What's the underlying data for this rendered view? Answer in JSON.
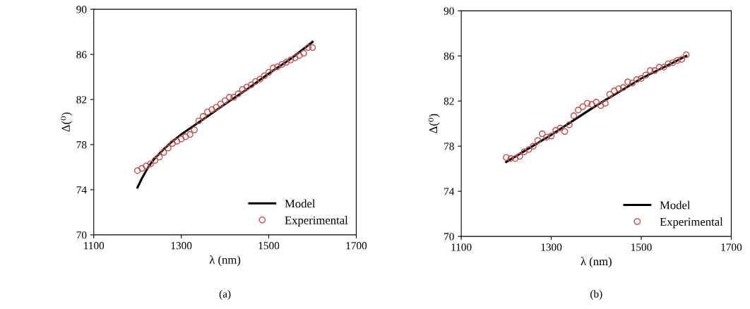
{
  "chart_data": [
    {
      "type": "line",
      "xlabel": "λ (nm)",
      "ylabel": "Δ(⁰)",
      "annotations": [
        "(a)"
      ],
      "xlim": [
        1100,
        1700
      ],
      "xticks": [
        1100,
        1300,
        1500,
        1700
      ],
      "ylim": [
        70,
        90
      ],
      "yticks": [
        70,
        74,
        78,
        82,
        86,
        90
      ],
      "grid": false,
      "legend": "bottom right",
      "series": [
        {
          "name": "Model",
          "color": "#000000",
          "marker": "none",
          "x": [
            1200,
            1210,
            1220,
            1230,
            1240,
            1250,
            1260,
            1280,
            1300,
            1330,
            1360,
            1400,
            1450,
            1500,
            1550,
            1600
          ],
          "values": [
            74.2,
            75.0,
            75.7,
            76.3,
            76.8,
            77.2,
            77.6,
            78.3,
            78.9,
            79.7,
            80.5,
            81.6,
            82.9,
            84.3,
            85.6,
            87.1
          ]
        },
        {
          "name": "Experimental",
          "type": "scatter",
          "color": "#c0504d",
          "marker": "circle",
          "x": [
            1200,
            1210,
            1220,
            1230,
            1240,
            1250,
            1260,
            1270,
            1280,
            1290,
            1300,
            1310,
            1320,
            1330,
            1340,
            1350,
            1360,
            1370,
            1380,
            1390,
            1400,
            1410,
            1420,
            1430,
            1440,
            1450,
            1460,
            1470,
            1480,
            1490,
            1500,
            1510,
            1520,
            1530,
            1540,
            1550,
            1560,
            1570,
            1580,
            1590,
            1600
          ],
          "values": [
            75.7,
            75.9,
            76.1,
            76.3,
            76.6,
            76.9,
            77.3,
            77.7,
            78.1,
            78.3,
            78.5,
            78.7,
            78.9,
            79.3,
            80.1,
            80.5,
            80.9,
            81.1,
            81.3,
            81.6,
            81.9,
            82.2,
            82.2,
            82.5,
            82.9,
            83.1,
            83.3,
            83.6,
            83.8,
            84.1,
            84.4,
            84.8,
            84.9,
            85.1,
            85.3,
            85.5,
            85.7,
            85.9,
            86.1,
            86.6,
            86.6
          ]
        }
      ]
    },
    {
      "type": "line",
      "xlabel": "λ (nm)",
      "ylabel": "Δ(⁰)",
      "annotations": [
        "(b)"
      ],
      "xlim": [
        1100,
        1700
      ],
      "xticks": [
        1100,
        1300,
        1500,
        1700
      ],
      "ylim": [
        70,
        90
      ],
      "yticks": [
        70,
        74,
        78,
        82,
        86,
        90
      ],
      "grid": false,
      "legend": "bottom right",
      "series": [
        {
          "name": "Model",
          "color": "#000000",
          "marker": "none",
          "x": [
            1200,
            1250,
            1300,
            1350,
            1400,
            1450,
            1500,
            1550,
            1600
          ],
          "values": [
            76.6,
            77.8,
            79.0,
            80.3,
            81.6,
            82.8,
            84.0,
            85.0,
            86.0
          ]
        },
        {
          "name": "Experimental",
          "type": "scatter",
          "color": "#c0504d",
          "marker": "circle",
          "x": [
            1200,
            1210,
            1220,
            1230,
            1240,
            1250,
            1260,
            1270,
            1280,
            1290,
            1300,
            1310,
            1320,
            1330,
            1340,
            1350,
            1360,
            1370,
            1380,
            1390,
            1400,
            1410,
            1420,
            1430,
            1440,
            1450,
            1460,
            1470,
            1480,
            1490,
            1500,
            1510,
            1520,
            1530,
            1540,
            1550,
            1560,
            1570,
            1580,
            1590,
            1600
          ],
          "values": [
            77.0,
            76.9,
            76.9,
            77.1,
            77.5,
            77.7,
            78.0,
            78.5,
            79.1,
            78.8,
            78.9,
            79.4,
            79.6,
            79.3,
            79.9,
            80.7,
            81.2,
            81.5,
            81.8,
            81.7,
            81.9,
            81.6,
            81.8,
            82.6,
            82.9,
            83.1,
            83.2,
            83.7,
            83.6,
            83.9,
            84.0,
            84.3,
            84.7,
            84.7,
            85.0,
            85.0,
            85.3,
            85.4,
            85.6,
            85.7,
            86.1
          ]
        }
      ]
    }
  ]
}
